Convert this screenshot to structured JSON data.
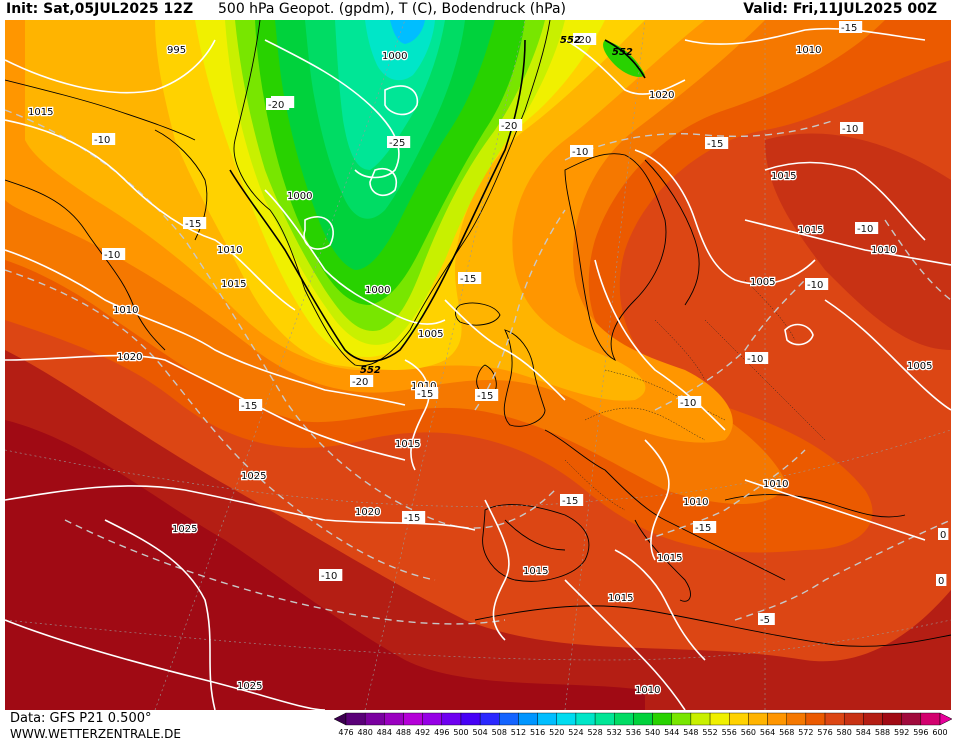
{
  "header": {
    "init": "Init: Sat,05JUL2025 12Z",
    "title": "500 hPa Geopot. (gpdm), T (C), Bodendruck (hPa)",
    "valid": "Valid: Fri,11JUL2025 00Z"
  },
  "footer": {
    "source": "Data: GFS P21 0.500°",
    "site": "WWW.WETTERZENTRALE.DE"
  },
  "colorbar": {
    "ticks": [
      "476",
      "480",
      "484",
      "488",
      "492",
      "496",
      "500",
      "504",
      "508",
      "512",
      "516",
      "520",
      "524",
      "528",
      "532",
      "536",
      "540",
      "544",
      "548",
      "552",
      "556",
      "560",
      "564",
      "568",
      "572",
      "576",
      "580",
      "584",
      "588",
      "592",
      "596",
      "600"
    ],
    "colors": [
      "#3c0050",
      "#5a0078",
      "#7a00a0",
      "#9a00c0",
      "#b400d8",
      "#9600e6",
      "#6e00f0",
      "#4600f5",
      "#2a28ff",
      "#1464ff",
      "#0096ff",
      "#00beff",
      "#00dcf0",
      "#00e6c8",
      "#00e696",
      "#00dc64",
      "#00d23c",
      "#28d200",
      "#78e600",
      "#c8f000",
      "#f0f000",
      "#ffd200",
      "#ffb400",
      "#ff9600",
      "#f57800",
      "#eb5a00",
      "#dc4614",
      "#c83214",
      "#b41e14",
      "#a00a14",
      "#a00a3c",
      "#d2006e",
      "#e6009a"
    ]
  },
  "pressure_labels": [
    "995",
    "1000",
    "1005",
    "1010",
    "1015",
    "1020",
    "1025"
  ],
  "temperature_labels": [
    "-25",
    "-20",
    "-15",
    "-10",
    "-5",
    "0"
  ],
  "geopotential_labels": [
    "552"
  ],
  "map_labels": [
    {
      "text": "995",
      "kind": "pressure"
    },
    {
      "text": "1000",
      "kind": "pressure"
    },
    {
      "text": "1015",
      "kind": "pressure"
    },
    {
      "text": "1000",
      "kind": "pressure"
    },
    {
      "text": "1010",
      "kind": "pressure"
    },
    {
      "text": "1015",
      "kind": "pressure"
    },
    {
      "text": "1010",
      "kind": "pressure"
    },
    {
      "text": "1020",
      "kind": "pressure"
    },
    {
      "text": "1000",
      "kind": "pressure"
    },
    {
      "text": "1005",
      "kind": "pressure"
    },
    {
      "text": "1010",
      "kind": "pressure"
    },
    {
      "text": "1015",
      "kind": "pressure"
    },
    {
      "text": "1025",
      "kind": "pressure"
    },
    {
      "text": "1020",
      "kind": "pressure"
    },
    {
      "text": "1025",
      "kind": "pressure"
    },
    {
      "text": "1015",
      "kind": "pressure"
    },
    {
      "text": "1015",
      "kind": "pressure"
    },
    {
      "text": "1015",
      "kind": "pressure"
    },
    {
      "text": "1010",
      "kind": "pressure"
    },
    {
      "text": "1025",
      "kind": "pressure"
    },
    {
      "text": "1010",
      "kind": "pressure"
    },
    {
      "text": "1020",
      "kind": "pressure"
    },
    {
      "text": "1010",
      "kind": "pressure"
    },
    {
      "text": "1015",
      "kind": "pressure"
    },
    {
      "text": "1015",
      "kind": "pressure"
    },
    {
      "text": "1010",
      "kind": "pressure"
    },
    {
      "text": "1005",
      "kind": "pressure"
    },
    {
      "text": "1005",
      "kind": "pressure"
    },
    {
      "text": "1010",
      "kind": "pressure"
    },
    {
      "text": "-10",
      "kind": "temp"
    },
    {
      "text": "-20",
      "kind": "temp"
    },
    {
      "text": "-25",
      "kind": "temp"
    },
    {
      "text": "-15",
      "kind": "temp"
    },
    {
      "text": "-10",
      "kind": "temp"
    },
    {
      "text": "-20",
      "kind": "temp"
    },
    {
      "text": "-20",
      "kind": "temp"
    },
    {
      "text": "-15",
      "kind": "temp"
    },
    {
      "text": "-15",
      "kind": "temp"
    },
    {
      "text": "-15",
      "kind": "temp"
    },
    {
      "text": "-10",
      "kind": "temp"
    },
    {
      "text": "-10",
      "kind": "temp"
    },
    {
      "text": "-20",
      "kind": "temp"
    },
    {
      "text": "-15",
      "kind": "temp"
    },
    {
      "text": "-15",
      "kind": "temp"
    },
    {
      "text": "-10",
      "kind": "temp"
    },
    {
      "text": "-10",
      "kind": "temp"
    },
    {
      "text": "-10",
      "kind": "temp"
    },
    {
      "text": "-10",
      "kind": "temp"
    },
    {
      "text": "-15",
      "kind": "temp"
    },
    {
      "text": "-15",
      "kind": "temp"
    },
    {
      "text": "-15",
      "kind": "temp"
    },
    {
      "text": "-10",
      "kind": "temp"
    },
    {
      "text": "-5",
      "kind": "temp"
    },
    {
      "text": "0",
      "kind": "temp"
    },
    {
      "text": "0",
      "kind": "temp"
    },
    {
      "text": "-10",
      "kind": "temp"
    },
    {
      "text": "-15",
      "kind": "temp"
    },
    {
      "text": "-20",
      "kind": "temp"
    },
    {
      "text": "552",
      "kind": "geopot"
    },
    {
      "text": "552",
      "kind": "geopot"
    },
    {
      "text": "552",
      "kind": "geopot"
    }
  ]
}
